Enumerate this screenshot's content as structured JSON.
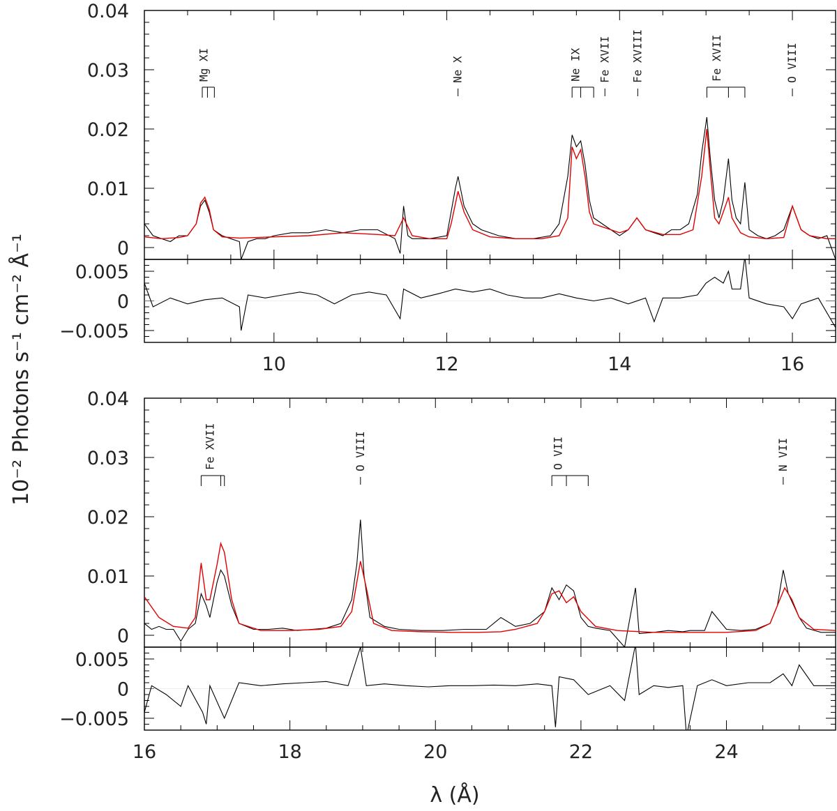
{
  "figure": {
    "ylabel": "10⁻² Photons s⁻¹ cm⁻² Å⁻¹",
    "xlabel": "λ (Å)",
    "colors": {
      "data": "#000000",
      "model": "#e00000",
      "frame": "#000000"
    }
  },
  "chart_data": [
    {
      "type": "line",
      "panel": "top-spectrum",
      "xlim": [
        8.5,
        16.5
      ],
      "ylim": [
        -0.002,
        0.04
      ],
      "yticks": [
        "0",
        "0.01",
        "0.02",
        "0.03",
        "0.04"
      ],
      "line_ids": [
        {
          "label": "Mg XI",
          "x": [
            9.17,
            9.23,
            9.31
          ],
          "kind": "triplet"
        },
        {
          "label": "Ne X",
          "x": [
            12.13
          ],
          "kind": "single"
        },
        {
          "label": "Ne IX",
          "x": [
            13.45,
            13.55,
            13.7
          ],
          "kind": "triplet"
        },
        {
          "label": "Fe XVII",
          "x": [
            13.83
          ],
          "kind": "single"
        },
        {
          "label": "Fe XVIII",
          "x": [
            14.21
          ],
          "kind": "single"
        },
        {
          "label": "Fe XVII",
          "x": [
            15.01,
            15.26,
            15.45
          ],
          "kind": "triplet"
        },
        {
          "label": "O VIII",
          "x": [
            16.0
          ],
          "kind": "single"
        }
      ],
      "series": [
        {
          "role": "data",
          "x": [
            8.5,
            8.6,
            8.7,
            8.8,
            8.9,
            9.0,
            9.1,
            9.15,
            9.2,
            9.25,
            9.3,
            9.4,
            9.5,
            9.6,
            9.62,
            9.7,
            9.8,
            9.9,
            10.0,
            10.2,
            10.4,
            10.6,
            10.8,
            11.0,
            11.2,
            11.4,
            11.46,
            11.5,
            11.55,
            11.6,
            11.8,
            12.0,
            12.1,
            12.13,
            12.2,
            12.3,
            12.4,
            12.6,
            12.8,
            13.0,
            13.2,
            13.3,
            13.4,
            13.45,
            13.5,
            13.55,
            13.6,
            13.65,
            13.7,
            13.8,
            13.9,
            14.0,
            14.1,
            14.2,
            14.3,
            14.4,
            14.5,
            14.6,
            14.7,
            14.8,
            14.9,
            14.95,
            15.01,
            15.05,
            15.1,
            15.15,
            15.2,
            15.26,
            15.3,
            15.35,
            15.4,
            15.45,
            15.5,
            15.6,
            15.7,
            15.8,
            15.9,
            16.0,
            16.1,
            16.2,
            16.3,
            16.4,
            16.5
          ],
          "y": [
            0.004,
            0.002,
            0.0015,
            0.001,
            0.002,
            0.002,
            0.004,
            0.007,
            0.008,
            0.006,
            0.003,
            0.002,
            0.0015,
            0.001,
            -0.002,
            0.001,
            0.0015,
            0.0015,
            0.002,
            0.0025,
            0.0025,
            0.003,
            0.0025,
            0.003,
            0.003,
            0.0015,
            -0.001,
            0.007,
            0.002,
            0.0015,
            0.0015,
            0.002,
            0.01,
            0.012,
            0.007,
            0.004,
            0.003,
            0.002,
            0.0015,
            0.0015,
            0.002,
            0.004,
            0.012,
            0.019,
            0.017,
            0.018,
            0.014,
            0.008,
            0.005,
            0.004,
            0.003,
            0.002,
            0.003,
            0.005,
            0.003,
            0.0025,
            0.002,
            0.003,
            0.003,
            0.004,
            0.009,
            0.016,
            0.022,
            0.015,
            0.008,
            0.005,
            0.008,
            0.015,
            0.008,
            0.005,
            0.004,
            0.011,
            0.003,
            0.002,
            0.0015,
            0.002,
            0.003,
            0.007,
            0.003,
            0.002,
            0.0015,
            0.002,
            -0.002
          ]
        },
        {
          "role": "model",
          "x": [
            8.5,
            8.7,
            8.9,
            9.0,
            9.1,
            9.15,
            9.2,
            9.25,
            9.3,
            9.4,
            9.6,
            9.8,
            10.0,
            10.4,
            10.8,
            11.2,
            11.4,
            11.5,
            11.6,
            11.8,
            12.0,
            12.05,
            12.13,
            12.2,
            12.3,
            12.5,
            12.8,
            13.1,
            13.3,
            13.4,
            13.45,
            13.5,
            13.55,
            13.6,
            13.65,
            13.7,
            13.8,
            13.9,
            14.0,
            14.1,
            14.2,
            14.3,
            14.5,
            14.7,
            14.85,
            14.95,
            15.01,
            15.05,
            15.1,
            15.15,
            15.2,
            15.26,
            15.3,
            15.4,
            15.5,
            15.7,
            15.9,
            16.0,
            16.1,
            16.2,
            16.4,
            16.5
          ],
          "y": [
            0.0018,
            0.0015,
            0.0017,
            0.002,
            0.004,
            0.0075,
            0.0085,
            0.0065,
            0.003,
            0.0018,
            0.0016,
            0.0017,
            0.0018,
            0.002,
            0.0025,
            0.0022,
            0.002,
            0.005,
            0.002,
            0.0015,
            0.0015,
            0.004,
            0.0095,
            0.006,
            0.003,
            0.0018,
            0.0015,
            0.0015,
            0.002,
            0.005,
            0.017,
            0.015,
            0.0165,
            0.012,
            0.006,
            0.004,
            0.0035,
            0.003,
            0.0025,
            0.003,
            0.005,
            0.003,
            0.0022,
            0.0022,
            0.003,
            0.012,
            0.02,
            0.013,
            0.005,
            0.004,
            0.006,
            0.0085,
            0.005,
            0.0025,
            0.0018,
            0.0015,
            0.0017,
            0.007,
            0.003,
            0.002,
            0.0015,
            0.0015
          ]
        }
      ]
    },
    {
      "type": "line",
      "panel": "top-residuals",
      "xlim": [
        8.5,
        16.5
      ],
      "ylim": [
        -0.007,
        0.007
      ],
      "xticks": [
        "10",
        "12",
        "14",
        "16"
      ],
      "yticks": [
        "−0.005",
        "0",
        "0.005"
      ],
      "series": [
        {
          "role": "residual",
          "x": [
            8.5,
            8.6,
            8.8,
            9.0,
            9.2,
            9.4,
            9.6,
            9.62,
            9.7,
            9.9,
            10.1,
            10.3,
            10.5,
            10.7,
            10.9,
            11.1,
            11.3,
            11.46,
            11.5,
            11.7,
            11.9,
            12.1,
            12.3,
            12.5,
            12.7,
            12.9,
            13.1,
            13.3,
            13.5,
            13.7,
            13.9,
            14.1,
            14.3,
            14.4,
            14.5,
            14.7,
            14.9,
            15.0,
            15.1,
            15.2,
            15.26,
            15.3,
            15.4,
            15.45,
            15.5,
            15.7,
            15.9,
            16.0,
            16.1,
            16.3,
            16.5
          ],
          "y": [
            0.003,
            -0.001,
            0.0005,
            -0.0005,
            0.0002,
            0.0005,
            -0.001,
            -0.005,
            0.001,
            0.0005,
            0.001,
            0.0015,
            0.001,
            -0.0005,
            0.001,
            0.0015,
            0.001,
            -0.003,
            0.002,
            0.0005,
            0.0012,
            0.002,
            0.0015,
            0.002,
            0.001,
            0.0005,
            0.0005,
            0.0012,
            0.0005,
            0.0,
            0.0005,
            -0.0005,
            0.0005,
            -0.0035,
            0.0005,
            0.0005,
            0.001,
            0.003,
            0.004,
            0.003,
            0.005,
            0.002,
            0.002,
            0.0075,
            0.0005,
            -0.0005,
            -0.001,
            -0.003,
            -0.0005,
            0.0005,
            -0.0045
          ]
        }
      ]
    },
    {
      "type": "line",
      "panel": "bottom-spectrum",
      "xlim": [
        16.0,
        25.5
      ],
      "ylim": [
        -0.002,
        0.04
      ],
      "yticks": [
        "0",
        "0.01",
        "0.02",
        "0.03",
        "0.04"
      ],
      "line_ids": [
        {
          "label": "Fe XVII",
          "x": [
            16.78,
            17.05,
            17.1
          ],
          "kind": "triplet"
        },
        {
          "label": "O VIII",
          "x": [
            18.97
          ],
          "kind": "single"
        },
        {
          "label": "O VII",
          "x": [
            21.6,
            21.8,
            22.1
          ],
          "kind": "triplet"
        },
        {
          "label": "N VII",
          "x": [
            24.78
          ],
          "kind": "single"
        }
      ],
      "series": [
        {
          "role": "data",
          "x": [
            16.0,
            16.1,
            16.2,
            16.3,
            16.4,
            16.5,
            16.6,
            16.7,
            16.78,
            16.85,
            16.9,
            17.0,
            17.05,
            17.1,
            17.2,
            17.3,
            17.5,
            17.7,
            17.9,
            18.1,
            18.3,
            18.5,
            18.7,
            18.85,
            18.92,
            18.97,
            19.02,
            19.1,
            19.3,
            19.5,
            19.8,
            20.1,
            20.4,
            20.7,
            20.9,
            21.1,
            21.3,
            21.5,
            21.6,
            21.7,
            21.8,
            21.9,
            22.0,
            22.1,
            22.2,
            22.4,
            22.6,
            22.75,
            22.8,
            23.0,
            23.2,
            23.4,
            23.5,
            23.7,
            23.8,
            24.0,
            24.2,
            24.4,
            24.6,
            24.7,
            24.78,
            24.85,
            25.0,
            25.1,
            25.3,
            25.5
          ],
          "y": [
            0.002,
            0.001,
            0.0015,
            0.001,
            0.001,
            -0.001,
            0.001,
            0.002,
            0.007,
            0.005,
            0.003,
            0.009,
            0.011,
            0.01,
            0.005,
            0.002,
            0.001,
            0.001,
            0.0012,
            0.0008,
            0.001,
            0.0012,
            0.002,
            0.006,
            0.012,
            0.0195,
            0.01,
            0.003,
            0.0015,
            0.001,
            0.0008,
            0.0008,
            0.001,
            0.001,
            0.003,
            0.0015,
            0.002,
            0.004,
            0.008,
            0.006,
            0.0085,
            0.0075,
            0.003,
            0.0015,
            0.0012,
            0.0008,
            -0.002,
            0.008,
            0.0003,
            0.0005,
            0.0008,
            0.0006,
            0.0008,
            0.0008,
            0.004,
            0.001,
            0.0008,
            0.001,
            0.002,
            0.005,
            0.011,
            0.007,
            0.003,
            0.0012,
            0.0005,
            0.0005
          ]
        },
        {
          "role": "model",
          "x": [
            16.0,
            16.2,
            16.4,
            16.6,
            16.7,
            16.78,
            16.85,
            16.9,
            17.0,
            17.05,
            17.1,
            17.2,
            17.3,
            17.6,
            18.0,
            18.4,
            18.7,
            18.85,
            18.97,
            19.05,
            19.15,
            19.4,
            19.8,
            20.2,
            20.6,
            20.9,
            21.1,
            21.4,
            21.5,
            21.6,
            21.7,
            21.8,
            21.9,
            22.0,
            22.2,
            22.5,
            23.0,
            23.5,
            24.0,
            24.4,
            24.6,
            24.7,
            24.8,
            24.9,
            25.0,
            25.2,
            25.5
          ],
          "y": [
            0.0065,
            0.003,
            0.0015,
            0.0012,
            0.003,
            0.0122,
            0.006,
            0.006,
            0.012,
            0.0155,
            0.014,
            0.006,
            0.002,
            0.0008,
            0.0008,
            0.001,
            0.0015,
            0.004,
            0.0125,
            0.008,
            0.002,
            0.0008,
            0.0006,
            0.0005,
            0.0005,
            0.0006,
            0.001,
            0.002,
            0.004,
            0.007,
            0.0075,
            0.0055,
            0.0065,
            0.004,
            0.0015,
            0.0008,
            0.0005,
            0.0005,
            0.0005,
            0.0008,
            0.002,
            0.005,
            0.008,
            0.006,
            0.003,
            0.001,
            0.0008
          ]
        }
      ]
    },
    {
      "type": "line",
      "panel": "bottom-residuals",
      "xlim": [
        16.0,
        25.5
      ],
      "ylim": [
        -0.007,
        0.007
      ],
      "xticks": [
        "16",
        "18",
        "20",
        "22",
        "24"
      ],
      "yticks": [
        "−0.005",
        "0",
        "0.005"
      ],
      "series": [
        {
          "role": "residual",
          "x": [
            16.0,
            16.1,
            16.3,
            16.5,
            16.6,
            16.8,
            16.85,
            16.9,
            17.1,
            17.3,
            17.6,
            17.9,
            18.2,
            18.5,
            18.8,
            18.97,
            19.05,
            19.3,
            19.6,
            19.9,
            20.2,
            20.5,
            20.8,
            21.1,
            21.4,
            21.6,
            21.65,
            21.7,
            21.9,
            22.1,
            22.4,
            22.6,
            22.75,
            22.8,
            23.0,
            23.2,
            23.4,
            23.45,
            23.6,
            23.8,
            24.0,
            24.3,
            24.6,
            24.78,
            24.9,
            25.0,
            25.2,
            25.5
          ],
          "y": [
            -0.004,
            0.0005,
            -0.001,
            -0.003,
            0.0005,
            -0.004,
            -0.006,
            0.0005,
            -0.005,
            0.001,
            0.0005,
            0.0008,
            0.001,
            0.0012,
            0.0005,
            0.007,
            0.0005,
            0.0008,
            0.0005,
            0.0003,
            0.0005,
            0.0005,
            0.0006,
            0.0005,
            0.0008,
            0.0005,
            -0.0065,
            0.002,
            0.0015,
            -0.001,
            0.0005,
            -0.002,
            0.0075,
            -0.001,
            0.0005,
            0.0002,
            0.0005,
            -0.008,
            0.0005,
            0.0015,
            0.0005,
            0.001,
            0.001,
            0.0025,
            0.0005,
            0.004,
            0.0005,
            0.0005
          ]
        }
      ]
    }
  ]
}
